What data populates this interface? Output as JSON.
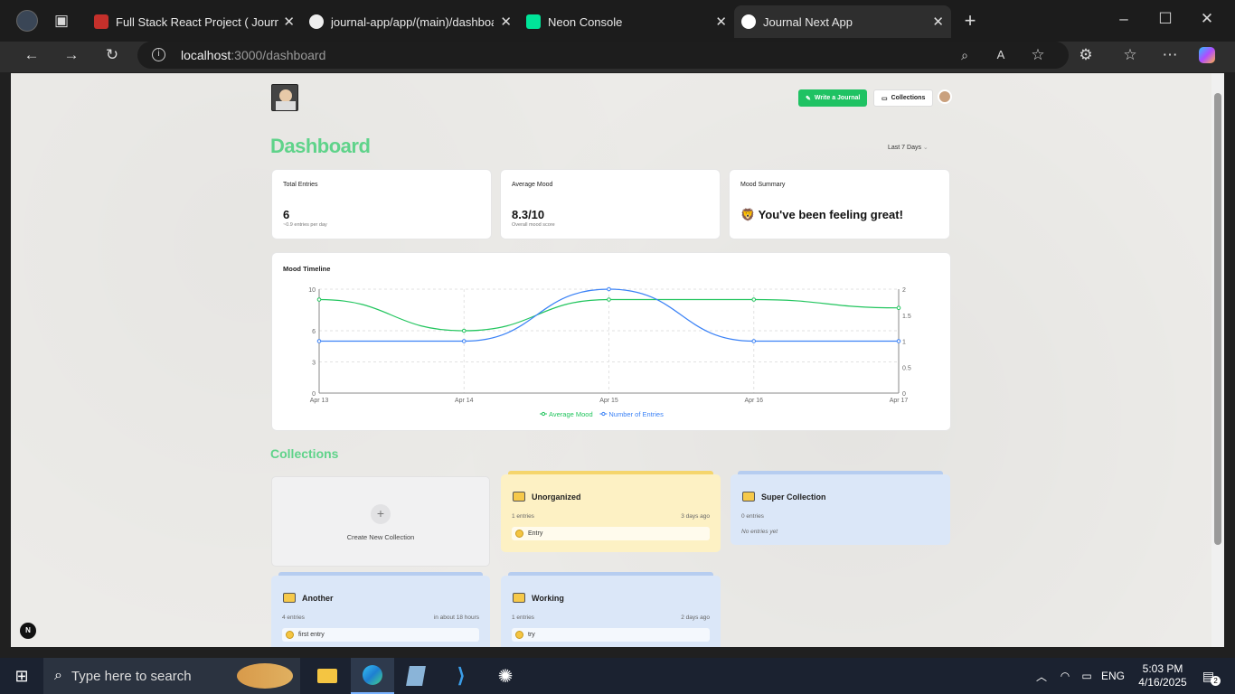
{
  "browser": {
    "tabs": [
      {
        "title": "Full Stack React Project ( Journal A",
        "fav_color": "#c4302b"
      },
      {
        "title": "journal-app/app/(main)/dashboa",
        "fav_color": "#eeeeee"
      },
      {
        "title": "Neon Console",
        "fav_color": "#00e599"
      },
      {
        "title": "Journal Next App",
        "fav_color": "#ffffff"
      }
    ],
    "url_host": "localhost",
    "url_path": ":3000/dashboard"
  },
  "header": {
    "write_button": "Write a Journal",
    "collections_button": "Collections"
  },
  "dashboard": {
    "title": "Dashboard",
    "range_select": "Last 7 Days",
    "stats": [
      {
        "label": "Total Entries",
        "value": "6",
        "sub": "~0.9 entries per day"
      },
      {
        "label": "Average Mood",
        "value": "8.3/10",
        "sub": "Overall mood score"
      },
      {
        "label": "Mood Summary",
        "value": "You've been feeling great!",
        "emoji": "🦁"
      }
    ]
  },
  "chart_data": {
    "type": "line",
    "title": "Mood Timeline",
    "categories": [
      "Apr 13",
      "Apr 14",
      "Apr 15",
      "Apr 16",
      "Apr 17"
    ],
    "series": [
      {
        "name": "Average Mood",
        "axis": "left",
        "color": "#22c55e",
        "values": [
          9,
          6,
          9,
          9,
          8.2
        ]
      },
      {
        "name": "Number of Entries",
        "axis": "right",
        "color": "#3b82f6",
        "values": [
          1,
          1,
          2,
          1,
          1
        ]
      }
    ],
    "y_left_ticks": [
      "0",
      "3",
      "6",
      "10"
    ],
    "y_right_ticks": [
      "0",
      "0.5",
      "1",
      "1.5",
      "2"
    ],
    "y_left_range": [
      0,
      10
    ],
    "y_right_range": [
      0,
      2
    ],
    "grid": true,
    "legend": "bottom"
  },
  "collections": {
    "title": "Collections",
    "create_label": "Create New Collection",
    "items": [
      {
        "name": "Unorganized",
        "count": "1 entries",
        "time": "3 days ago",
        "entry": "Entry",
        "bg": "#fdf1c4",
        "bar": "#f5d56c"
      },
      {
        "name": "Super Collection",
        "count": "0 entries",
        "time": "",
        "entry": "",
        "empty": "No entries yet",
        "bg": "#dbe7f8",
        "bar": "#b6cdf0"
      },
      {
        "name": "Another",
        "count": "4 entries",
        "time": "in about 18 hours",
        "entry": "first entry",
        "bg": "#dbe7f8",
        "bar": "#b6cdf0"
      },
      {
        "name": "Working",
        "count": "1 entries",
        "time": "2 days ago",
        "entry": "try",
        "bg": "#dbe7f8",
        "bar": "#b6cdf0"
      }
    ]
  },
  "taskbar": {
    "search_placeholder": "Type here to search",
    "lang": "ENG",
    "time": "5:03 PM",
    "date": "4/16/2025",
    "notifications": "2"
  }
}
